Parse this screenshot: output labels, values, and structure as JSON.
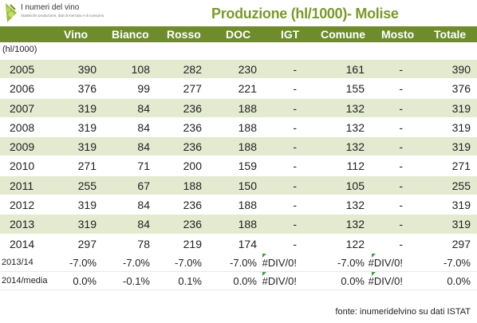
{
  "logo": {
    "name": "I numeri del vino",
    "subtitle": "Statistiche produzione, dati di mercato e di consumo",
    "icon": "grape-leaf-icon"
  },
  "title": "Produzione (hl/1000)- Molise",
  "unit_label": "(hl/1000)",
  "columns": [
    "Vino",
    "Bianco",
    "Rosso",
    "DOC",
    "IGT",
    "Comune",
    "Mosto",
    "Totale"
  ],
  "rows": [
    {
      "year": "2005",
      "values": [
        "390",
        "108",
        "282",
        "230",
        "-",
        "161",
        "-",
        "390"
      ]
    },
    {
      "year": "2006",
      "values": [
        "376",
        "99",
        "277",
        "221",
        "-",
        "155",
        "-",
        "376"
      ]
    },
    {
      "year": "2007",
      "values": [
        "319",
        "84",
        "236",
        "188",
        "-",
        "132",
        "-",
        "319"
      ]
    },
    {
      "year": "2008",
      "values": [
        "319",
        "84",
        "236",
        "188",
        "-",
        "132",
        "-",
        "319"
      ]
    },
    {
      "year": "2009",
      "values": [
        "319",
        "84",
        "236",
        "188",
        "-",
        "132",
        "-",
        "319"
      ]
    },
    {
      "year": "2010",
      "values": [
        "271",
        "71",
        "200",
        "159",
        "-",
        "112",
        "-",
        "271"
      ]
    },
    {
      "year": "2011",
      "values": [
        "255",
        "67",
        "188",
        "150",
        "-",
        "105",
        "-",
        "255"
      ]
    },
    {
      "year": "2012",
      "values": [
        "319",
        "84",
        "236",
        "188",
        "-",
        "132",
        "-",
        "319"
      ]
    },
    {
      "year": "2013",
      "values": [
        "319",
        "84",
        "236",
        "188",
        "-",
        "132",
        "-",
        "319"
      ]
    },
    {
      "year": "2014",
      "values": [
        "297",
        "78",
        "219",
        "174",
        "-",
        "122",
        "-",
        "297"
      ]
    }
  ],
  "percent_rows": [
    {
      "label": "2013/14",
      "values": [
        "-7.0%",
        "-7.0%",
        "-7.0%",
        "-7.0%",
        "#DIV/0!",
        "-7.0%",
        "#DIV/0!",
        "-7.0%"
      ]
    },
    {
      "label": "2014/media",
      "values": [
        "0.0%",
        "-0.1%",
        "0.1%",
        "0.0%",
        "#DIV/0!",
        "0.0%",
        "#DIV/0!",
        "0.0%"
      ]
    }
  ],
  "footer": "fonte: inumeridelvino su dati ISTAT",
  "colors": {
    "header_bg": "#6f8c2d",
    "title": "#7a9a2c",
    "band": "#e3ead0"
  }
}
